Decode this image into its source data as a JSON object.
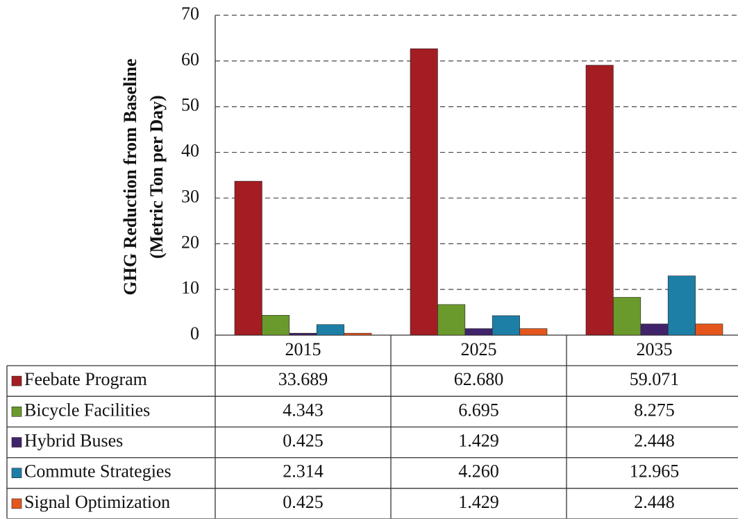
{
  "chart_data": {
    "type": "bar",
    "ylabel": [
      "GHG Reduction from Baseline",
      "(Metric Ton per Day)"
    ],
    "categories": [
      "2015",
      "2025",
      "2035"
    ],
    "series": [
      {
        "name": "Feebate Program",
        "color": "#a31d22",
        "values": [
          33.689,
          62.68,
          59.071
        ],
        "value_labels": [
          "33.689",
          "62.680",
          "59.071"
        ]
      },
      {
        "name": "Bicycle Facilities",
        "color": "#6a9a2c",
        "values": [
          4.343,
          6.695,
          8.275
        ],
        "value_labels": [
          "4.343",
          "6.695",
          "8.275"
        ]
      },
      {
        "name": "Hybrid Buses",
        "color": "#40236a",
        "values": [
          0.425,
          1.429,
          2.448
        ],
        "value_labels": [
          "0.425",
          "1.429",
          "2.448"
        ]
      },
      {
        "name": "Commute Strategies",
        "color": "#1e7fa6",
        "values": [
          2.314,
          4.26,
          12.965
        ],
        "value_labels": [
          "2.314",
          "4.260",
          "12.965"
        ]
      },
      {
        "name": "Signal Optimization",
        "color": "#e4561c",
        "values": [
          0.425,
          1.429,
          2.448
        ],
        "value_labels": [
          "0.425",
          "1.429",
          "2.448"
        ]
      }
    ],
    "ylim": [
      0,
      70
    ],
    "yticks": [
      0,
      10,
      20,
      30,
      40,
      50,
      60,
      70
    ],
    "grid": true
  }
}
